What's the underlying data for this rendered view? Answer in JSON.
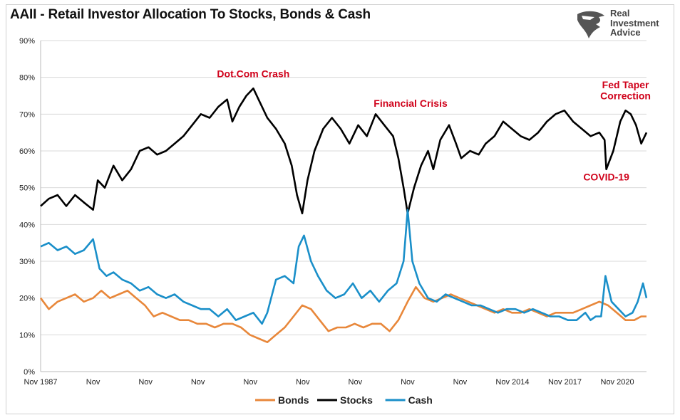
{
  "title": "AAII - Retail Investor Allocation To Stocks, Bonds & Cash",
  "logo": {
    "lines": [
      "Real",
      "Investment",
      "Advice"
    ],
    "icon": "eagle-head-icon"
  },
  "colors": {
    "Bonds": "#e8873a",
    "Stocks": "#000000",
    "Cash": "#1a8fc9",
    "annotation": "#d0021b",
    "grid": "#d9d9d9"
  },
  "chart_data": {
    "type": "line",
    "title": "AAII - Retail Investor Allocation To Stocks, Bonds & Cash",
    "xlabel": "",
    "ylabel": "",
    "x_range": [
      1987.83,
      2022.5
    ],
    "ylim": [
      0,
      90
    ],
    "y_ticks": [
      0,
      10,
      20,
      30,
      40,
      50,
      60,
      70,
      80,
      90
    ],
    "y_tick_labels": [
      "0%",
      "10%",
      "20%",
      "30%",
      "40%",
      "50%",
      "60%",
      "70%",
      "80%",
      "90%"
    ],
    "x_tick_positions": [
      1987.83,
      1990.83,
      1993.83,
      1996.83,
      1999.83,
      2002.83,
      2005.83,
      2008.83,
      2011.83,
      2014.83,
      2017.83,
      2020.83
    ],
    "x_tick_labels": [
      "Nov 1987",
      "Nov",
      "Nov",
      "Nov",
      "Nov",
      "Nov",
      "Nov",
      "Nov",
      "Nov",
      "Nov 2014",
      "Nov 2017",
      "Nov 2020"
    ],
    "grid": "horizontal",
    "legend_position": "bottom-center",
    "series": [
      {
        "name": "Stocks",
        "points": [
          [
            1987.83,
            45
          ],
          [
            1988.3,
            47
          ],
          [
            1988.8,
            48
          ],
          [
            1989.3,
            45
          ],
          [
            1989.8,
            48
          ],
          [
            1990.3,
            46
          ],
          [
            1990.83,
            44
          ],
          [
            1991.1,
            52
          ],
          [
            1991.5,
            50
          ],
          [
            1992.0,
            56
          ],
          [
            1992.5,
            52
          ],
          [
            1993.0,
            55
          ],
          [
            1993.5,
            60
          ],
          [
            1994.0,
            61
          ],
          [
            1994.5,
            59
          ],
          [
            1995.0,
            60
          ],
          [
            1995.5,
            62
          ],
          [
            1996.0,
            64
          ],
          [
            1996.5,
            67
          ],
          [
            1997.0,
            70
          ],
          [
            1997.5,
            69
          ],
          [
            1998.0,
            72
          ],
          [
            1998.5,
            74
          ],
          [
            1998.8,
            68
          ],
          [
            1999.2,
            72
          ],
          [
            1999.6,
            75
          ],
          [
            2000.0,
            77
          ],
          [
            2000.3,
            74
          ],
          [
            2000.8,
            69
          ],
          [
            2001.3,
            66
          ],
          [
            2001.8,
            62
          ],
          [
            2002.2,
            56
          ],
          [
            2002.5,
            48
          ],
          [
            2002.8,
            43
          ],
          [
            2003.1,
            52
          ],
          [
            2003.5,
            60
          ],
          [
            2004.0,
            66
          ],
          [
            2004.5,
            69
          ],
          [
            2005.0,
            66
          ],
          [
            2005.5,
            62
          ],
          [
            2006.0,
            67
          ],
          [
            2006.5,
            64
          ],
          [
            2007.0,
            70
          ],
          [
            2007.5,
            67
          ],
          [
            2008.0,
            64
          ],
          [
            2008.3,
            58
          ],
          [
            2008.6,
            50
          ],
          [
            2008.83,
            43
          ],
          [
            2009.2,
            50
          ],
          [
            2009.6,
            56
          ],
          [
            2010.0,
            60
          ],
          [
            2010.3,
            55
          ],
          [
            2010.7,
            63
          ],
          [
            2011.2,
            67
          ],
          [
            2011.6,
            62
          ],
          [
            2011.9,
            58
          ],
          [
            2012.4,
            60
          ],
          [
            2012.9,
            59
          ],
          [
            2013.3,
            62
          ],
          [
            2013.8,
            64
          ],
          [
            2014.3,
            68
          ],
          [
            2014.8,
            66
          ],
          [
            2015.3,
            64
          ],
          [
            2015.8,
            63
          ],
          [
            2016.3,
            65
          ],
          [
            2016.8,
            68
          ],
          [
            2017.3,
            70
          ],
          [
            2017.8,
            71
          ],
          [
            2018.3,
            68
          ],
          [
            2018.8,
            66
          ],
          [
            2019.3,
            64
          ],
          [
            2019.8,
            65
          ],
          [
            2020.1,
            63
          ],
          [
            2020.2,
            55
          ],
          [
            2020.6,
            60
          ],
          [
            2021.0,
            68
          ],
          [
            2021.3,
            71
          ],
          [
            2021.6,
            70
          ],
          [
            2021.9,
            67
          ],
          [
            2022.2,
            62
          ],
          [
            2022.5,
            65
          ]
        ]
      },
      {
        "name": "Bonds",
        "points": [
          [
            1987.83,
            20
          ],
          [
            1988.3,
            17
          ],
          [
            1988.8,
            19
          ],
          [
            1989.3,
            20
          ],
          [
            1989.8,
            21
          ],
          [
            1990.3,
            19
          ],
          [
            1990.83,
            20
          ],
          [
            1991.3,
            22
          ],
          [
            1991.8,
            20
          ],
          [
            1992.3,
            21
          ],
          [
            1992.8,
            22
          ],
          [
            1993.3,
            20
          ],
          [
            1993.8,
            18
          ],
          [
            1994.3,
            15
          ],
          [
            1994.8,
            16
          ],
          [
            1995.3,
            15
          ],
          [
            1995.8,
            14
          ],
          [
            1996.3,
            14
          ],
          [
            1996.8,
            13
          ],
          [
            1997.3,
            13
          ],
          [
            1997.8,
            12
          ],
          [
            1998.3,
            13
          ],
          [
            1998.8,
            13
          ],
          [
            1999.3,
            12
          ],
          [
            1999.8,
            10
          ],
          [
            2000.3,
            9
          ],
          [
            2000.8,
            8
          ],
          [
            2001.3,
            10
          ],
          [
            2001.8,
            12
          ],
          [
            2002.3,
            15
          ],
          [
            2002.8,
            18
          ],
          [
            2003.3,
            17
          ],
          [
            2003.8,
            14
          ],
          [
            2004.3,
            11
          ],
          [
            2004.8,
            12
          ],
          [
            2005.3,
            12
          ],
          [
            2005.8,
            13
          ],
          [
            2006.3,
            12
          ],
          [
            2006.8,
            13
          ],
          [
            2007.3,
            13
          ],
          [
            2007.8,
            11
          ],
          [
            2008.3,
            14
          ],
          [
            2008.83,
            19
          ],
          [
            2009.3,
            23
          ],
          [
            2009.8,
            20
          ],
          [
            2010.3,
            19
          ],
          [
            2010.8,
            20
          ],
          [
            2011.3,
            21
          ],
          [
            2011.8,
            20
          ],
          [
            2012.3,
            19
          ],
          [
            2012.8,
            18
          ],
          [
            2013.3,
            17
          ],
          [
            2013.8,
            16
          ],
          [
            2014.3,
            17
          ],
          [
            2014.8,
            16
          ],
          [
            2015.3,
            16
          ],
          [
            2015.8,
            17
          ],
          [
            2016.3,
            16
          ],
          [
            2016.8,
            15
          ],
          [
            2017.3,
            16
          ],
          [
            2017.8,
            16
          ],
          [
            2018.3,
            16
          ],
          [
            2018.8,
            17
          ],
          [
            2019.3,
            18
          ],
          [
            2019.8,
            19
          ],
          [
            2020.3,
            18
          ],
          [
            2020.8,
            16
          ],
          [
            2021.3,
            14
          ],
          [
            2021.8,
            14
          ],
          [
            2022.2,
            15
          ],
          [
            2022.5,
            15
          ]
        ]
      },
      {
        "name": "Cash",
        "points": [
          [
            1987.83,
            34
          ],
          [
            1988.3,
            35
          ],
          [
            1988.8,
            33
          ],
          [
            1989.3,
            34
          ],
          [
            1989.8,
            32
          ],
          [
            1990.3,
            33
          ],
          [
            1990.83,
            36
          ],
          [
            1991.2,
            28
          ],
          [
            1991.6,
            26
          ],
          [
            1992.0,
            27
          ],
          [
            1992.5,
            25
          ],
          [
            1993.0,
            24
          ],
          [
            1993.5,
            22
          ],
          [
            1994.0,
            23
          ],
          [
            1994.5,
            21
          ],
          [
            1995.0,
            20
          ],
          [
            1995.5,
            21
          ],
          [
            1996.0,
            19
          ],
          [
            1996.5,
            18
          ],
          [
            1997.0,
            17
          ],
          [
            1997.5,
            17
          ],
          [
            1998.0,
            15
          ],
          [
            1998.5,
            17
          ],
          [
            1999.0,
            14
          ],
          [
            1999.5,
            15
          ],
          [
            2000.0,
            16
          ],
          [
            2000.5,
            13
          ],
          [
            2000.8,
            16
          ],
          [
            2001.3,
            25
          ],
          [
            2001.8,
            26
          ],
          [
            2002.3,
            24
          ],
          [
            2002.6,
            34
          ],
          [
            2002.9,
            37
          ],
          [
            2003.3,
            30
          ],
          [
            2003.7,
            26
          ],
          [
            2004.2,
            22
          ],
          [
            2004.7,
            20
          ],
          [
            2005.2,
            21
          ],
          [
            2005.7,
            24
          ],
          [
            2006.2,
            20
          ],
          [
            2006.7,
            22
          ],
          [
            2007.2,
            19
          ],
          [
            2007.7,
            22
          ],
          [
            2008.2,
            24
          ],
          [
            2008.6,
            30
          ],
          [
            2008.83,
            44
          ],
          [
            2009.1,
            30
          ],
          [
            2009.5,
            24
          ],
          [
            2010.0,
            20
          ],
          [
            2010.5,
            19
          ],
          [
            2011.0,
            21
          ],
          [
            2011.5,
            20
          ],
          [
            2012.0,
            19
          ],
          [
            2012.5,
            18
          ],
          [
            2013.0,
            18
          ],
          [
            2013.5,
            17
          ],
          [
            2014.0,
            16
          ],
          [
            2014.5,
            17
          ],
          [
            2015.0,
            17
          ],
          [
            2015.5,
            16
          ],
          [
            2016.0,
            17
          ],
          [
            2016.5,
            16
          ],
          [
            2017.0,
            15
          ],
          [
            2017.5,
            15
          ],
          [
            2018.0,
            14
          ],
          [
            2018.5,
            14
          ],
          [
            2019.0,
            16
          ],
          [
            2019.3,
            14
          ],
          [
            2019.6,
            15
          ],
          [
            2019.9,
            15
          ],
          [
            2020.15,
            26
          ],
          [
            2020.5,
            19
          ],
          [
            2020.9,
            17
          ],
          [
            2021.3,
            15
          ],
          [
            2021.7,
            16
          ],
          [
            2022.0,
            19
          ],
          [
            2022.3,
            24
          ],
          [
            2022.5,
            20
          ]
        ]
      }
    ],
    "annotations": [
      {
        "text": "Dot.Com Crash",
        "x": 2000.0,
        "y": 80
      },
      {
        "text": "Financial Crisis",
        "x": 2009.0,
        "y": 72
      },
      {
        "text": "Fed Taper",
        "x": 2021.3,
        "y": 77
      },
      {
        "text": "Correction",
        "x": 2021.3,
        "y": 74
      },
      {
        "text": "COVID-19",
        "x": 2020.2,
        "y": 52
      }
    ]
  }
}
